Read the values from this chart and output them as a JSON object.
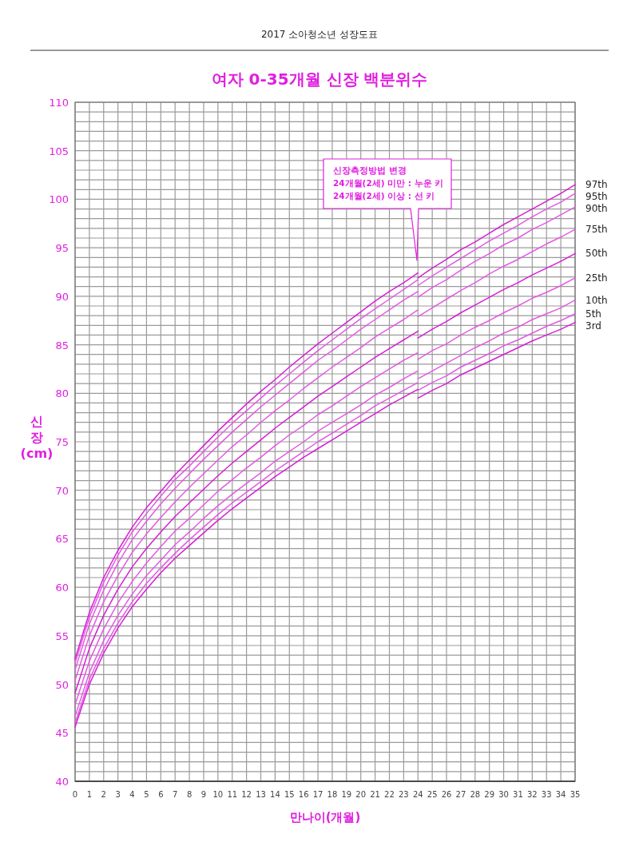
{
  "chart_data": {
    "type": "line",
    "subtitle": "2017 소아청소년 성장도표",
    "title": "여자 0-35개월 신장 백분위수",
    "xlabel": "만나이(개월)",
    "ylabel": "신장(cm)",
    "xlim": [
      0,
      35
    ],
    "ylim": [
      40,
      110
    ],
    "xticks": [
      0,
      1,
      2,
      3,
      4,
      5,
      6,
      7,
      8,
      9,
      10,
      11,
      12,
      13,
      14,
      15,
      16,
      17,
      18,
      19,
      20,
      21,
      22,
      23,
      24,
      25,
      26,
      27,
      28,
      29,
      30,
      31,
      32,
      33,
      34,
      35
    ],
    "yticks": [
      40,
      {
        "value": 41,
        "label": null
      },
      {
        "value": 42,
        "label": null
      },
      {
        "value": 43,
        "label": null
      },
      {
        "value": 44,
        "label": null
      },
      45,
      {
        "value": 46,
        "label": null
      },
      {
        "value": 47,
        "label": null
      },
      {
        "value": 48,
        "label": null
      },
      {
        "value": 49,
        "label": null
      },
      50,
      {
        "value": 51,
        "label": null
      },
      {
        "value": 52,
        "label": null
      },
      {
        "value": 53,
        "label": null
      },
      {
        "value": 54,
        "label": null
      },
      55,
      {
        "value": 56,
        "label": null
      },
      {
        "value": 57,
        "label": null
      },
      {
        "value": 58,
        "label": null
      },
      {
        "value": 59,
        "label": null
      },
      60,
      {
        "value": 61,
        "label": null
      },
      {
        "value": 62,
        "label": null
      },
      {
        "value": 63,
        "label": null
      },
      {
        "value": 64,
        "label": null
      },
      65,
      {
        "value": 66,
        "label": null
      },
      {
        "value": 67,
        "label": null
      },
      {
        "value": 68,
        "label": null
      },
      {
        "value": 69,
        "label": null
      },
      70,
      {
        "value": 71,
        "label": null
      },
      {
        "value": 72,
        "label": null
      },
      {
        "value": 73,
        "label": null
      },
      {
        "value": 74,
        "label": null
      },
      75,
      {
        "value": 76,
        "label": null
      },
      {
        "value": 77,
        "label": null
      },
      {
        "value": 78,
        "label": null
      },
      {
        "value": 79,
        "label": null
      },
      80,
      {
        "value": 81,
        "label": null
      },
      {
        "value": 82,
        "label": null
      },
      {
        "value": 83,
        "label": null
      },
      {
        "value": 84,
        "label": null
      },
      85,
      {
        "value": 86,
        "label": null
      },
      {
        "value": 87,
        "label": null
      },
      {
        "value": 88,
        "label": null
      },
      {
        "value": 89,
        "label": null
      },
      90,
      {
        "value": 91,
        "label": null
      },
      {
        "value": 92,
        "label": null
      },
      {
        "value": 93,
        "label": null
      },
      {
        "value": 94,
        "label": null
      },
      95,
      {
        "value": 96,
        "label": null
      },
      {
        "value": 97,
        "label": null
      },
      {
        "value": 98,
        "label": null
      },
      {
        "value": 99,
        "label": null
      },
      100,
      {
        "value": 101,
        "label": null
      },
      {
        "value": 102,
        "label": null
      },
      {
        "value": 103,
        "label": null
      },
      {
        "value": 104,
        "label": null
      },
      105,
      {
        "value": 106,
        "label": null
      },
      {
        "value": 107,
        "label": null
      },
      {
        "value": 108,
        "label": null
      },
      {
        "value": 109,
        "label": null
      },
      110
    ],
    "grid": true,
    "x": [
      0,
      1,
      2,
      3,
      4,
      5,
      6,
      7,
      8,
      9,
      10,
      11,
      12,
      13,
      14,
      15,
      16,
      17,
      18,
      19,
      20,
      21,
      22,
      23,
      24,
      24,
      25,
      26,
      27,
      28,
      29,
      30,
      31,
      32,
      33,
      34,
      35
    ],
    "series": [
      {
        "name": "97th",
        "color": "#d61ed6",
        "values": [
          52.6,
          57.4,
          61.0,
          63.8,
          66.2,
          68.2,
          69.9,
          71.6,
          73.1,
          74.6,
          76.1,
          77.5,
          78.9,
          80.2,
          81.4,
          82.7,
          83.9,
          85.1,
          86.2,
          87.3,
          88.4,
          89.5,
          90.5,
          91.4,
          92.4,
          91.9,
          92.9,
          93.8,
          94.8,
          95.6,
          96.5,
          97.4,
          98.2,
          99.0,
          99.8,
          100.6,
          101.5
        ]
      },
      {
        "name": "95th",
        "color": "#e45ae4",
        "values": [
          52.2,
          56.9,
          60.5,
          63.3,
          65.7,
          67.6,
          69.4,
          71.1,
          72.5,
          74.0,
          75.5,
          76.9,
          78.2,
          79.5,
          80.8,
          82.0,
          83.2,
          84.4,
          85.5,
          86.6,
          87.7,
          88.7,
          89.7,
          90.7,
          91.7,
          91.1,
          92.1,
          93.0,
          93.9,
          94.8,
          95.7,
          96.5,
          97.3,
          98.2,
          99.0,
          99.7,
          100.6
        ]
      },
      {
        "name": "90th",
        "color": "#e45ae4",
        "values": [
          51.5,
          56.2,
          59.7,
          62.5,
          64.9,
          66.8,
          68.6,
          70.2,
          71.7,
          73.2,
          74.6,
          76.0,
          77.3,
          78.6,
          79.8,
          81.0,
          82.2,
          83.4,
          84.4,
          85.5,
          86.6,
          87.6,
          88.6,
          89.6,
          90.5,
          89.9,
          90.9,
          91.7,
          92.7,
          93.6,
          94.4,
          95.3,
          96.0,
          96.9,
          97.6,
          98.4,
          99.2
        ]
      },
      {
        "name": "75th",
        "color": "#e45ae4",
        "values": [
          50.4,
          55.0,
          58.5,
          61.2,
          63.6,
          65.5,
          67.2,
          68.8,
          70.3,
          71.7,
          73.1,
          74.5,
          75.7,
          77.0,
          78.2,
          79.3,
          80.5,
          81.6,
          82.7,
          83.7,
          84.7,
          85.8,
          86.7,
          87.6,
          88.6,
          87.9,
          88.8,
          89.7,
          90.6,
          91.4,
          92.3,
          93.1,
          93.8,
          94.6,
          95.4,
          96.1,
          96.9
        ]
      },
      {
        "name": "50th",
        "color": "#d61ed6",
        "values": [
          49.1,
          53.7,
          57.1,
          59.8,
          62.1,
          64.0,
          65.7,
          67.3,
          68.7,
          70.1,
          71.5,
          72.8,
          74.0,
          75.2,
          76.4,
          77.5,
          78.6,
          79.7,
          80.7,
          81.7,
          82.7,
          83.7,
          84.6,
          85.5,
          86.4,
          85.7,
          86.6,
          87.4,
          88.3,
          89.1,
          89.9,
          90.7,
          91.4,
          92.2,
          92.9,
          93.6,
          94.4
        ]
      },
      {
        "name": "25th",
        "color": "#e45ae4",
        "values": [
          47.9,
          52.4,
          55.7,
          58.4,
          60.6,
          62.5,
          64.2,
          65.8,
          67.1,
          68.5,
          69.9,
          71.1,
          72.3,
          73.4,
          74.6,
          75.7,
          76.7,
          77.8,
          78.7,
          79.7,
          80.7,
          81.6,
          82.5,
          83.4,
          84.2,
          83.5,
          84.4,
          85.1,
          86.0,
          86.8,
          87.5,
          88.3,
          89.0,
          89.8,
          90.4,
          91.1,
          91.9
        ]
      },
      {
        "name": "10th",
        "color": "#e45ae4",
        "values": [
          46.7,
          51.2,
          54.5,
          57.1,
          59.3,
          61.2,
          62.8,
          64.4,
          65.7,
          67.1,
          68.4,
          69.6,
          70.7,
          71.8,
          73.0,
          74.0,
          75.0,
          76.1,
          77.0,
          77.9,
          78.8,
          79.8,
          80.6,
          81.5,
          82.3,
          81.5,
          82.3,
          83.1,
          83.9,
          84.7,
          85.4,
          86.2,
          86.8,
          87.6,
          88.2,
          88.8,
          89.6
        ]
      },
      {
        "name": "5th",
        "color": "#e45ae4",
        "values": [
          46.0,
          50.5,
          53.7,
          56.3,
          58.5,
          60.4,
          62.0,
          63.5,
          64.9,
          66.2,
          67.5,
          68.7,
          69.8,
          70.9,
          72.0,
          73.0,
          74.0,
          75.0,
          75.9,
          76.8,
          77.7,
          78.7,
          79.5,
          80.3,
          81.1,
          80.3,
          81.1,
          81.8,
          82.7,
          83.4,
          84.1,
          84.9,
          85.5,
          86.2,
          86.9,
          87.5,
          88.2
        ]
      },
      {
        "name": "3rd",
        "color": "#d61ed6",
        "values": [
          45.6,
          50.0,
          53.2,
          55.8,
          58.0,
          59.8,
          61.5,
          63.0,
          64.3,
          65.6,
          66.9,
          68.1,
          69.2,
          70.3,
          71.4,
          72.4,
          73.4,
          74.3,
          75.2,
          76.1,
          77.0,
          77.9,
          78.8,
          79.6,
          80.4,
          79.5,
          80.3,
          81.0,
          81.9,
          82.6,
          83.3,
          84.0,
          84.7,
          85.4,
          86.0,
          86.6,
          87.3
        ]
      }
    ],
    "annotations": [
      "신장측정방법 변경\n24개월(2세) 미만 : 누운 키\n24개월(2세) 이상 : 선 키"
    ]
  }
}
